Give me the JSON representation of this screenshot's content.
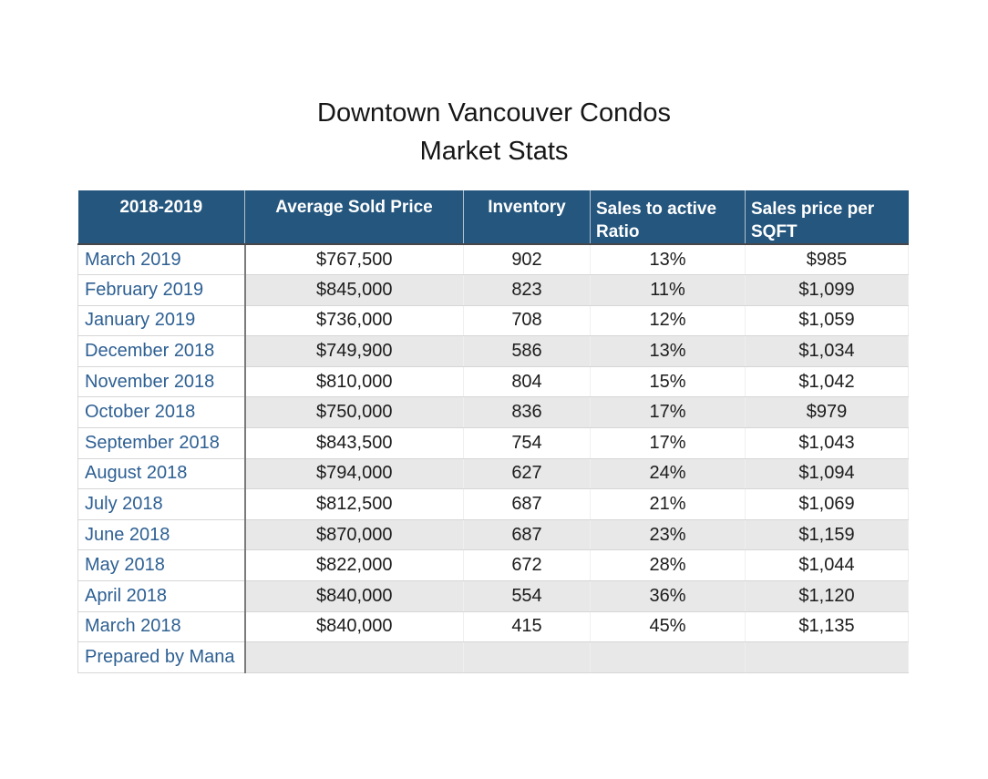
{
  "title": {
    "line1": "Downtown Vancouver Condos",
    "line2": "Market Stats"
  },
  "chart_data": {
    "type": "table",
    "title": "Downtown Vancouver Condos Market Stats",
    "columns": [
      "2018-2019",
      "Average Sold Price",
      "Inventory",
      "Sales to active Ratio",
      "Sales price per SQFT"
    ],
    "rows": [
      [
        "March 2019",
        "$767,500",
        "902",
        "13%",
        "$985"
      ],
      [
        "February 2019",
        "$845,000",
        "823",
        "11%",
        "$1,099"
      ],
      [
        "January 2019",
        "$736,000",
        "708",
        "12%",
        "$1,059"
      ],
      [
        "December 2018",
        "$749,900",
        "586",
        "13%",
        "$1,034"
      ],
      [
        "November 2018",
        "$810,000",
        "804",
        "15%",
        "$1,042"
      ],
      [
        "October 2018",
        "$750,000",
        "836",
        "17%",
        "$979"
      ],
      [
        "September 2018",
        "$843,500",
        "754",
        "17%",
        "$1,043"
      ],
      [
        "August 2018",
        "$794,000",
        "627",
        "24%",
        "$1,094"
      ],
      [
        "July 2018",
        "$812,500",
        "687",
        "21%",
        "$1,069"
      ],
      [
        "June 2018",
        "$870,000",
        "687",
        "23%",
        "$1,159"
      ],
      [
        "May 2018",
        "$822,000",
        "672",
        "28%",
        "$1,044"
      ],
      [
        "April 2018",
        "$840,000",
        "554",
        "36%",
        "$1,120"
      ],
      [
        "March 2018",
        "$840,000",
        "415",
        "45%",
        "$1,135"
      ]
    ],
    "footer_row": [
      "Prepared by Mana",
      "",
      "",
      "",
      ""
    ]
  },
  "colors": {
    "header_bg": "#24567E",
    "header_text": "#FFFFFF",
    "period_text": "#2E6093",
    "stripe": "#E8E8E8"
  }
}
